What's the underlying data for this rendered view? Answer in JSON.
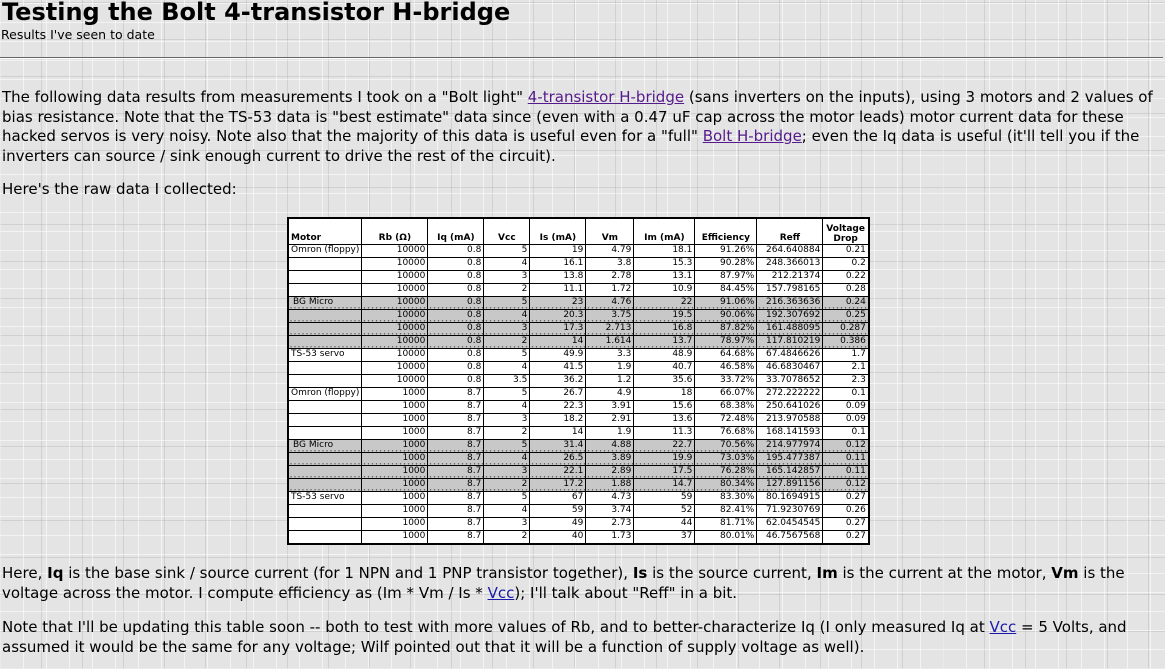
{
  "title": "Testing the Bolt 4-transistor H-bridge",
  "subtitle": "Results I've seen to date",
  "intro": {
    "t1": "The following data results from measurements I took on a \"Bolt light\" ",
    "link1": "4-transistor H-bridge",
    "t2": " (sans inverters on the inputs), using 3 motors and 2 values of bias resistance. Note that the TS-53 data is \"best estimate\" data since (even with a 0.47 uF cap across the motor leads) motor current data for these hacked servos is very noisy. Note also that the majority of this data is useful even for a \"full\" ",
    "link2": "Bolt H-bridge",
    "t3": "; even the Iq data is useful (it'll tell you if the inverters can source / sink enough current to drive the rest of the circuit)."
  },
  "raw_data_text": "Here's the raw data I collected:",
  "table": {
    "headers": [
      "Motor",
      "Rb (Ω)",
      "Iq (mA)",
      "Vcc",
      "Is (mA)",
      "Vm",
      "Im (mA)",
      "Efficiency",
      "Reff",
      "Voltage Drop"
    ],
    "rows": [
      {
        "motor": "Omron (floppy)",
        "rb": "10000",
        "iq": "0.8",
        "vcc": "5",
        "is": "19",
        "vm": "4.79",
        "im": "18.1",
        "eff": "91.26%",
        "reff": "264.640884",
        "vd": "0.21",
        "shade": false
      },
      {
        "motor": "",
        "rb": "10000",
        "iq": "0.8",
        "vcc": "4",
        "is": "16.1",
        "vm": "3.8",
        "im": "15.3",
        "eff": "90.28%",
        "reff": "248.366013",
        "vd": "0.2",
        "shade": false
      },
      {
        "motor": "",
        "rb": "10000",
        "iq": "0.8",
        "vcc": "3",
        "is": "13.8",
        "vm": "2.78",
        "im": "13.1",
        "eff": "87.97%",
        "reff": "212.21374",
        "vd": "0.22",
        "shade": false
      },
      {
        "motor": "",
        "rb": "10000",
        "iq": "0.8",
        "vcc": "2",
        "is": "11.1",
        "vm": "1.72",
        "im": "10.9",
        "eff": "84.45%",
        "reff": "157.798165",
        "vd": "0.28",
        "shade": false
      },
      {
        "motor": "BG Micro",
        "rb": "10000",
        "iq": "0.8",
        "vcc": "5",
        "is": "23",
        "vm": "4.76",
        "im": "22",
        "eff": "91.06%",
        "reff": "216.363636",
        "vd": "0.24",
        "shade": true
      },
      {
        "motor": "",
        "rb": "10000",
        "iq": "0.8",
        "vcc": "4",
        "is": "20.3",
        "vm": "3.75",
        "im": "19.5",
        "eff": "90.06%",
        "reff": "192.307692",
        "vd": "0.25",
        "shade": true
      },
      {
        "motor": "",
        "rb": "10000",
        "iq": "0.8",
        "vcc": "3",
        "is": "17.3",
        "vm": "2.713",
        "im": "16.8",
        "eff": "87.82%",
        "reff": "161.488095",
        "vd": "0.287",
        "shade": true
      },
      {
        "motor": "",
        "rb": "10000",
        "iq": "0.8",
        "vcc": "2",
        "is": "14",
        "vm": "1.614",
        "im": "13.7",
        "eff": "78.97%",
        "reff": "117.810219",
        "vd": "0.386",
        "shade": true
      },
      {
        "motor": "TS-53 servo",
        "rb": "10000",
        "iq": "0.8",
        "vcc": "5",
        "is": "49.9",
        "vm": "3.3",
        "im": "48.9",
        "eff": "64.68%",
        "reff": "67.4846626",
        "vd": "1.7",
        "shade": false
      },
      {
        "motor": "",
        "rb": "10000",
        "iq": "0.8",
        "vcc": "4",
        "is": "41.5",
        "vm": "1.9",
        "im": "40.7",
        "eff": "46.58%",
        "reff": "46.6830467",
        "vd": "2.1",
        "shade": false
      },
      {
        "motor": "",
        "rb": "10000",
        "iq": "0.8",
        "vcc": "3.5",
        "is": "36.2",
        "vm": "1.2",
        "im": "35.6",
        "eff": "33.72%",
        "reff": "33.7078652",
        "vd": "2.3",
        "shade": false
      },
      {
        "motor": "Omron (floppy)",
        "rb": "1000",
        "iq": "8.7",
        "vcc": "5",
        "is": "26.7",
        "vm": "4.9",
        "im": "18",
        "eff": "66.07%",
        "reff": "272.222222",
        "vd": "0.1",
        "shade": false
      },
      {
        "motor": "",
        "rb": "1000",
        "iq": "8.7",
        "vcc": "4",
        "is": "22.3",
        "vm": "3.91",
        "im": "15.6",
        "eff": "68.38%",
        "reff": "250.641026",
        "vd": "0.09",
        "shade": false
      },
      {
        "motor": "",
        "rb": "1000",
        "iq": "8.7",
        "vcc": "3",
        "is": "18.2",
        "vm": "2.91",
        "im": "13.6",
        "eff": "72.48%",
        "reff": "213.970588",
        "vd": "0.09",
        "shade": false
      },
      {
        "motor": "",
        "rb": "1000",
        "iq": "8.7",
        "vcc": "2",
        "is": "14",
        "vm": "1.9",
        "im": "11.3",
        "eff": "76.68%",
        "reff": "168.141593",
        "vd": "0.1",
        "shade": false
      },
      {
        "motor": "BG Micro",
        "rb": "1000",
        "iq": "8.7",
        "vcc": "5",
        "is": "31.4",
        "vm": "4.88",
        "im": "22.7",
        "eff": "70.56%",
        "reff": "214.977974",
        "vd": "0.12",
        "shade": true
      },
      {
        "motor": "",
        "rb": "1000",
        "iq": "8.7",
        "vcc": "4",
        "is": "26.5",
        "vm": "3.89",
        "im": "19.9",
        "eff": "73.03%",
        "reff": "195.477387",
        "vd": "0.11",
        "shade": true
      },
      {
        "motor": "",
        "rb": "1000",
        "iq": "8.7",
        "vcc": "3",
        "is": "22.1",
        "vm": "2.89",
        "im": "17.5",
        "eff": "76.28%",
        "reff": "165.142857",
        "vd": "0.11",
        "shade": true
      },
      {
        "motor": "",
        "rb": "1000",
        "iq": "8.7",
        "vcc": "2",
        "is": "17.2",
        "vm": "1.88",
        "im": "14.7",
        "eff": "80.34%",
        "reff": "127.891156",
        "vd": "0.12",
        "shade": true
      },
      {
        "motor": "TS-53 servo",
        "rb": "1000",
        "iq": "8.7",
        "vcc": "5",
        "is": "67",
        "vm": "4.73",
        "im": "59",
        "eff": "83.30%",
        "reff": "80.1694915",
        "vd": "0.27",
        "shade": false
      },
      {
        "motor": "",
        "rb": "1000",
        "iq": "8.7",
        "vcc": "4",
        "is": "59",
        "vm": "3.74",
        "im": "52",
        "eff": "82.41%",
        "reff": "71.9230769",
        "vd": "0.26",
        "shade": false
      },
      {
        "motor": "",
        "rb": "1000",
        "iq": "8.7",
        "vcc": "3",
        "is": "49",
        "vm": "2.73",
        "im": "44",
        "eff": "81.71%",
        "reff": "62.0454545",
        "vd": "0.27",
        "shade": false
      },
      {
        "motor": "",
        "rb": "1000",
        "iq": "8.7",
        "vcc": "2",
        "is": "40",
        "vm": "1.73",
        "im": "37",
        "eff": "80.01%",
        "reff": "46.7567568",
        "vd": "0.27",
        "shade": false
      }
    ]
  },
  "para_defs": {
    "t1": "Here, ",
    "b1": "Iq",
    "t2": " is the base sink / source current (for 1 NPN and 1 PNP transistor together), ",
    "b2": "Is",
    "t3": " is the source current, ",
    "b3": "Im",
    "t4": " is the current at the motor, ",
    "b4": "Vm",
    "t5": " is the voltage across the motor. I compute efficiency as (Im * Vm / Is * ",
    "link": "Vcc",
    "t6": "); I'll talk about \"Reff\" in a bit."
  },
  "para_note": {
    "t1": "Note that I'll be updating this table soon -- both to test with more values of Rb, and to better-characterize Iq (I only measured Iq at ",
    "link": "Vcc",
    "t2": " = 5 Volts, and assumed it would be the same for any voltage; Wilf pointed out that it will be a function of supply voltage as well)."
  }
}
